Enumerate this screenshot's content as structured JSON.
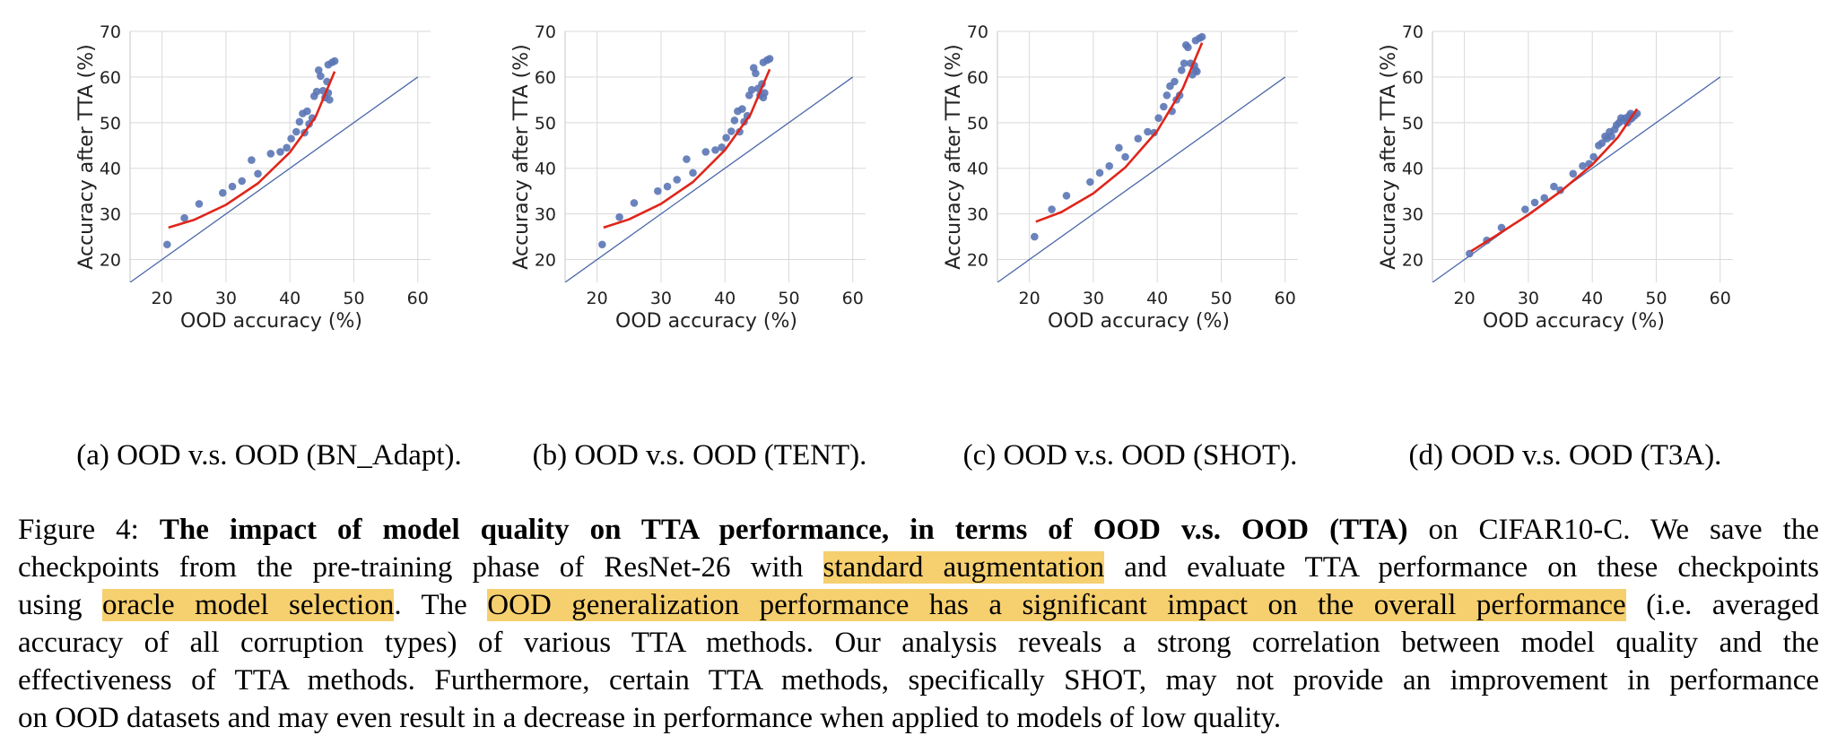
{
  "chart_data": [
    {
      "type": "scatter",
      "caption": "(a) OOD v.s. OOD (BN_Adapt).",
      "xlabel": "OOD accuracy (%)",
      "ylabel": "Accuracy after TTA (%)",
      "xlim": [
        15,
        62
      ],
      "ylim": [
        15,
        70
      ],
      "xticks": [
        20,
        30,
        40,
        50,
        60
      ],
      "yticks": [
        20,
        30,
        40,
        50,
        60,
        70
      ],
      "grid": true,
      "points": [
        [
          20.8,
          23.3
        ],
        [
          23.5,
          29.1
        ],
        [
          25.8,
          32.2
        ],
        [
          29.5,
          34.6
        ],
        [
          31.0,
          36.0
        ],
        [
          32.5,
          37.2
        ],
        [
          34.0,
          41.8
        ],
        [
          35.0,
          38.8
        ],
        [
          37.0,
          43.2
        ],
        [
          38.5,
          43.6
        ],
        [
          39.5,
          44.5
        ],
        [
          40.2,
          46.5
        ],
        [
          41.0,
          48.0
        ],
        [
          41.5,
          50.2
        ],
        [
          42.0,
          52.0
        ],
        [
          42.3,
          47.8
        ],
        [
          42.7,
          52.5
        ],
        [
          43.0,
          49.7
        ],
        [
          43.5,
          51.0
        ],
        [
          43.8,
          55.8
        ],
        [
          44.2,
          56.8
        ],
        [
          44.5,
          61.5
        ],
        [
          44.8,
          60.2
        ],
        [
          45.2,
          57.0
        ],
        [
          45.5,
          55.5
        ],
        [
          45.8,
          59.0
        ],
        [
          46.0,
          56.5
        ],
        [
          46.0,
          62.7
        ],
        [
          46.2,
          55.0
        ],
        [
          46.6,
          63.2
        ],
        [
          47.0,
          63.5
        ]
      ],
      "fit": [
        [
          21,
          27.0
        ],
        [
          25,
          28.7
        ],
        [
          30,
          32.0
        ],
        [
          35,
          36.7
        ],
        [
          40,
          43.5
        ],
        [
          44,
          51.2
        ],
        [
          47,
          61.2
        ]
      ],
      "diagonal": [
        [
          15,
          15
        ],
        [
          60,
          60
        ]
      ]
    },
    {
      "type": "scatter",
      "caption": "(b) OOD v.s. OOD (TENT).",
      "xlabel": "OOD accuracy (%)",
      "ylabel": "Accuracy after TTA (%)",
      "xlim": [
        15,
        62
      ],
      "ylim": [
        15,
        70
      ],
      "xticks": [
        20,
        30,
        40,
        50,
        60
      ],
      "yticks": [
        20,
        30,
        40,
        50,
        60,
        70
      ],
      "grid": true,
      "points": [
        [
          20.8,
          23.3
        ],
        [
          23.5,
          29.3
        ],
        [
          25.8,
          32.4
        ],
        [
          29.5,
          35.0
        ],
        [
          31.0,
          36.0
        ],
        [
          32.5,
          37.5
        ],
        [
          34.0,
          42.0
        ],
        [
          35.0,
          39.0
        ],
        [
          37.0,
          43.6
        ],
        [
          38.5,
          44.0
        ],
        [
          39.5,
          44.6
        ],
        [
          40.2,
          46.7
        ],
        [
          41.0,
          48.1
        ],
        [
          41.5,
          50.5
        ],
        [
          42.0,
          52.5
        ],
        [
          42.3,
          48.0
        ],
        [
          42.7,
          53.0
        ],
        [
          43.0,
          50.2
        ],
        [
          43.5,
          51.5
        ],
        [
          43.8,
          56.0
        ],
        [
          44.2,
          57.2
        ],
        [
          44.5,
          62.0
        ],
        [
          44.8,
          60.8
        ],
        [
          45.2,
          57.5
        ],
        [
          45.5,
          56.0
        ],
        [
          45.8,
          58.5
        ],
        [
          46.0,
          55.5
        ],
        [
          46.0,
          63.2
        ],
        [
          46.2,
          56.5
        ],
        [
          46.6,
          63.7
        ],
        [
          47.0,
          64.0
        ]
      ],
      "fit": [
        [
          21,
          27.0
        ],
        [
          25,
          28.8
        ],
        [
          30,
          32.2
        ],
        [
          35,
          37.0
        ],
        [
          40,
          44.0
        ],
        [
          44,
          51.8
        ],
        [
          47,
          61.7
        ]
      ],
      "diagonal": [
        [
          15,
          15
        ],
        [
          60,
          60
        ]
      ]
    },
    {
      "type": "scatter",
      "caption": "(c) OOD v.s. OOD (SHOT).",
      "xlabel": "OOD accuracy (%)",
      "ylabel": "Accuracy after TTA (%)",
      "xlim": [
        15,
        62
      ],
      "ylim": [
        15,
        70
      ],
      "xticks": [
        20,
        30,
        40,
        50,
        60
      ],
      "yticks": [
        20,
        30,
        40,
        50,
        60,
        70
      ],
      "grid": true,
      "points": [
        [
          20.8,
          25.0
        ],
        [
          23.5,
          31.0
        ],
        [
          25.8,
          34.0
        ],
        [
          29.5,
          37.0
        ],
        [
          31.0,
          39.0
        ],
        [
          32.5,
          40.5
        ],
        [
          34.0,
          44.5
        ],
        [
          35.0,
          42.5
        ],
        [
          37.0,
          46.5
        ],
        [
          38.5,
          48.0
        ],
        [
          39.5,
          47.8
        ],
        [
          40.2,
          51.0
        ],
        [
          41.0,
          53.5
        ],
        [
          41.5,
          56.0
        ],
        [
          42.0,
          58.0
        ],
        [
          42.3,
          52.5
        ],
        [
          42.7,
          59.0
        ],
        [
          43.0,
          55.0
        ],
        [
          43.5,
          56.0
        ],
        [
          43.8,
          61.5
        ],
        [
          44.2,
          63.0
        ],
        [
          44.5,
          67.0
        ],
        [
          44.8,
          66.5
        ],
        [
          45.2,
          63.0
        ],
        [
          45.5,
          60.5
        ],
        [
          45.8,
          62.5
        ],
        [
          46.0,
          61.5
        ],
        [
          46.0,
          68.0
        ],
        [
          46.2,
          61.2
        ],
        [
          46.6,
          68.5
        ],
        [
          47.0,
          68.8
        ]
      ],
      "fit": [
        [
          21,
          28.3
        ],
        [
          25,
          30.4
        ],
        [
          30,
          34.5
        ],
        [
          35,
          40.2
        ],
        [
          40,
          48.2
        ],
        [
          44,
          57.5
        ],
        [
          47,
          67.5
        ]
      ],
      "diagonal": [
        [
          15,
          15
        ],
        [
          60,
          60
        ]
      ]
    },
    {
      "type": "scatter",
      "caption": "(d) OOD v.s. OOD (T3A).",
      "xlabel": "OOD accuracy (%)",
      "ylabel": "Accuracy after TTA (%)",
      "xlim": [
        15,
        62
      ],
      "ylim": [
        15,
        70
      ],
      "xticks": [
        20,
        30,
        40,
        50,
        60
      ],
      "yticks": [
        20,
        30,
        40,
        50,
        60,
        70
      ],
      "grid": true,
      "points": [
        [
          20.8,
          21.3
        ],
        [
          23.5,
          24.2
        ],
        [
          25.8,
          27.0
        ],
        [
          29.5,
          31.0
        ],
        [
          31.0,
          32.5
        ],
        [
          32.5,
          33.5
        ],
        [
          34.0,
          36.0
        ],
        [
          35.0,
          35.2
        ],
        [
          37.0,
          38.8
        ],
        [
          38.5,
          40.5
        ],
        [
          39.5,
          41.0
        ],
        [
          40.2,
          42.5
        ],
        [
          41.0,
          45.0
        ],
        [
          41.5,
          45.5
        ],
        [
          42.0,
          47.0
        ],
        [
          42.3,
          46.5
        ],
        [
          42.7,
          48.0
        ],
        [
          43.0,
          47.0
        ],
        [
          43.5,
          48.5
        ],
        [
          43.8,
          49.5
        ],
        [
          44.2,
          50.0
        ],
        [
          44.5,
          51.0
        ],
        [
          44.8,
          50.5
        ],
        [
          45.2,
          51.0
        ],
        [
          45.5,
          50.0
        ],
        [
          45.8,
          51.5
        ],
        [
          46.0,
          50.8
        ],
        [
          46.0,
          52.0
        ],
        [
          46.2,
          51.0
        ],
        [
          46.6,
          51.5
        ],
        [
          47.0,
          52.0
        ]
      ],
      "fit": [
        [
          21,
          21.8
        ],
        [
          25,
          25.3
        ],
        [
          30,
          29.8
        ],
        [
          35,
          34.9
        ],
        [
          40,
          40.8
        ],
        [
          44,
          46.8
        ],
        [
          47,
          53.0
        ]
      ],
      "diagonal": [
        [
          15,
          15
        ],
        [
          60,
          60
        ]
      ]
    }
  ],
  "caption": {
    "label": "Figure 4:",
    "bold": "The impact of model quality on TTA performance, in terms of OOD v.s. OOD (TTA)",
    "t1": " on CIFAR10-C. We save the",
    "t2": "checkpoints from the pre-training phase of ResNet-26 with ",
    "h1": "standard augmentation",
    "t3": " and evaluate TTA performance on these checkpoints",
    "t4": "using ",
    "h2": "oracle model selection",
    "t5": ". The ",
    "h3": "OOD generalization performance has a significant impact on the overall performance",
    "t6": " (i.e. averaged",
    "t7": "accuracy of all corruption types) of various TTA methods. Our analysis reveals a strong correlation between model quality and the",
    "t8": "effectiveness of TTA methods. Furthermore, certain TTA methods, specifically SHOT, may not provide an improvement in performance",
    "t9": "on OOD datasets and may even result in a decrease in performance when applied to models of low quality."
  },
  "colors": {
    "point": "#5b76b5",
    "fit": "#e0251b",
    "diagonal": "#4c68a8",
    "grid": "#d9d9d9",
    "highlight": "#f6cf6f"
  }
}
